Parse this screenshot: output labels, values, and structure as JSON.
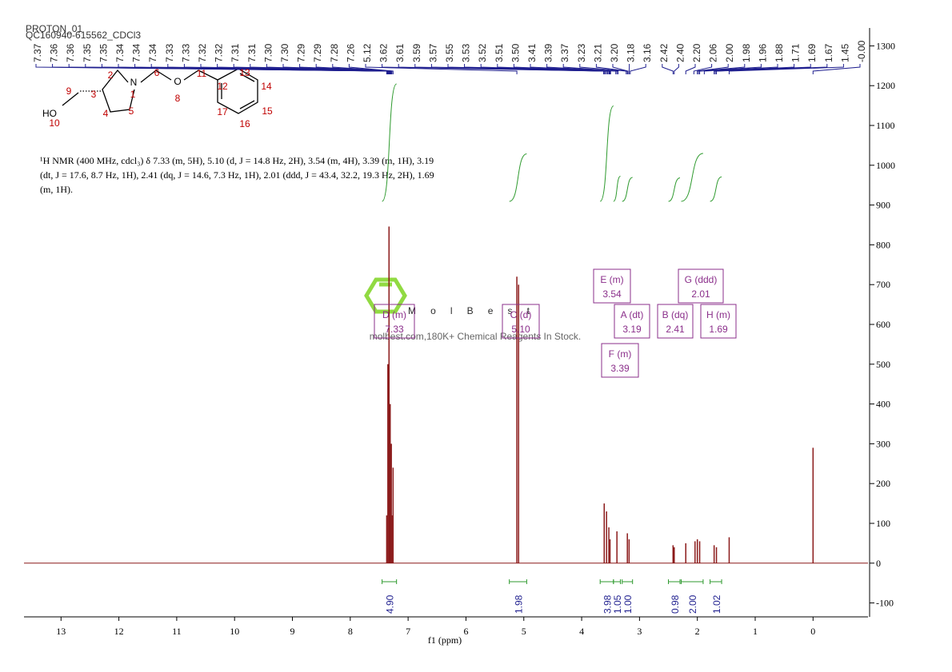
{
  "chart_data": {
    "type": "nmr",
    "header": [
      "PROTON_01",
      "QC160940-615562_CDCl3"
    ],
    "x_label": "f1 (ppm)",
    "xlim": [
      13.64,
      -0.95
    ],
    "xticks": [
      13,
      12,
      11,
      10,
      9,
      8,
      7,
      6,
      5,
      4,
      3,
      2,
      1,
      0
    ],
    "ylim": [
      -135,
      1345
    ],
    "yticks": [
      -100,
      0,
      100,
      200,
      300,
      400,
      500,
      600,
      700,
      800,
      900,
      1000,
      1100,
      1200,
      1300
    ],
    "peak_labels": [
      7.37,
      7.36,
      7.36,
      7.35,
      7.35,
      7.34,
      7.34,
      7.34,
      7.33,
      7.33,
      7.32,
      7.32,
      7.31,
      7.31,
      {
        "value": 7.3,
        "label": "7.30"
      },
      {
        "value": 7.3,
        "label": "7.30"
      },
      7.29,
      7.29,
      7.28,
      7.26,
      5.12,
      3.62,
      3.61,
      3.59,
      3.57,
      3.55,
      3.53,
      3.52,
      3.51,
      {
        "value": 3.5,
        "label": "3.50"
      },
      3.41,
      3.39,
      3.37,
      3.23,
      3.21,
      {
        "value": 3.2,
        "label": "3.20"
      },
      3.18,
      3.16,
      2.42,
      {
        "value": 2.4,
        "label": "2.40"
      },
      {
        "value": 2.2,
        "label": "2.20"
      },
      2.06,
      {
        "value": 2,
        "label": "2.00"
      },
      1.98,
      1.96,
      1.88,
      1.71,
      1.69,
      1.67,
      1.45,
      {
        "value": 0,
        "label": "-0.00"
      }
    ],
    "color": "#8b1a1a",
    "peaks": {
      "x": [
        7.37,
        7.35,
        7.33,
        7.31,
        7.29,
        7.28,
        7.26,
        5.12,
        5.09,
        3.61,
        3.57,
        3.53,
        3.51,
        3.39,
        3.21,
        3.18,
        2.42,
        2.4,
        2.2,
        2.04,
        2,
        1.96,
        1.71,
        1.67,
        1.45,
        0
      ],
      "values": [
        120,
        500,
        846,
        400,
        300,
        120,
        240,
        720,
        700,
        150,
        130,
        90,
        60,
        80,
        75,
        60,
        45,
        40,
        50,
        55,
        60,
        55,
        45,
        40,
        65,
        290
      ]
    },
    "integrals": [
      {
        "range": [
          7.45,
          7.2
        ],
        "value": 4.9,
        "label": "4.90"
      },
      {
        "range": [
          5.25,
          4.95
        ],
        "value": 1.98,
        "label": "1.98"
      },
      {
        "range": [
          3.68,
          3.45
        ],
        "value": 3.98,
        "label": "3.98"
      },
      {
        "range": [
          3.45,
          3.33
        ],
        "value": 1.05,
        "label": "1.05"
      },
      {
        "range": [
          3.3,
          3.12
        ],
        "value": 1,
        "label": "1.00"
      },
      {
        "range": [
          2.5,
          2.3
        ],
        "value": 0.98,
        "label": "0.98"
      },
      {
        "range": [
          2.28,
          1.9
        ],
        "value": 2,
        "label": "2.00"
      },
      {
        "range": [
          1.78,
          1.58
        ],
        "value": 1.02,
        "label": "1.02"
      }
    ],
    "multiplets": [
      {
        "name": "D (m)",
        "shift": "7.33"
      },
      {
        "name": "C (d)",
        "shift": "5.10"
      },
      {
        "name": "E (m)",
        "shift": "3.54"
      },
      {
        "name": "A (dt)",
        "shift": "3.19"
      },
      {
        "name": "F (m)",
        "shift": "3.39"
      },
      {
        "name": "B (dq)",
        "shift": "2.41"
      },
      {
        "name": "G (ddd)",
        "shift": "2.01"
      },
      {
        "name": "H (m)",
        "shift": "1.69"
      }
    ],
    "description": [
      "¹H NMR (400 MHz, cdcl₃) δ 7.33 (m, 5H), 5.10 (d, J = 14.8 Hz, 2H), 3.54 (m, 4H), 3.39 (m, 1H), 3.19",
      "(dt, J = 17.6, 8.7 Hz, 1H), 2.41 (dq, J = 14.6, 7.3 Hz, 1H), 2.01 (ddd, J = 43.4, 32.2, 19.3 Hz, 2H), 1.69",
      "(m, 1H)."
    ],
    "watermark": {
      "brand": "MolBest",
      "tagline": "molbest.com,180K+ Chemical Reagents In Stock."
    },
    "structure": {
      "atoms": [
        "N",
        "O",
        "HO"
      ],
      "numbers": [
        "1",
        "2",
        "3",
        "4",
        "5",
        "6",
        "8",
        "9",
        "10",
        "11",
        "12",
        "13",
        "14",
        "15",
        "16",
        "17"
      ]
    }
  }
}
